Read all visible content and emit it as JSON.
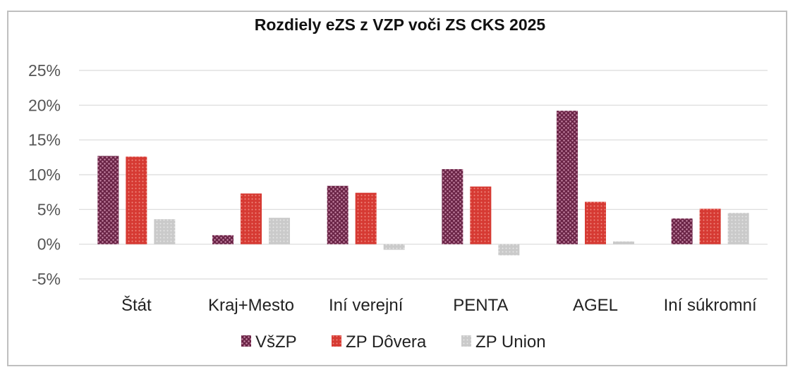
{
  "chart_data": {
    "type": "bar",
    "title": "Rozdiely eZS z VZP voči ZS CKS 2025",
    "xlabel": "",
    "ylabel": "",
    "ylim": [
      -5,
      25
    ],
    "y_ticks": [
      25,
      20,
      15,
      10,
      5,
      0,
      -5
    ],
    "y_tick_labels": [
      "25%",
      "20%",
      "15%",
      "10%",
      "5%",
      "0%",
      "-5%"
    ],
    "grid": true,
    "legend_position": "bottom",
    "categories": [
      "Štát",
      "Kraj+Mesto",
      "Iní verejní",
      "PENTA",
      "AGEL",
      "Iní súkromní"
    ],
    "series": [
      {
        "name": "VšZP",
        "color": "#7b3355",
        "values": [
          12.7,
          1.3,
          8.4,
          10.8,
          19.2,
          3.7
        ]
      },
      {
        "name": "ZP Dôvera",
        "color": "#d9453d",
        "values": [
          12.6,
          7.3,
          7.4,
          8.3,
          6.1,
          5.1
        ]
      },
      {
        "name": "ZP Union",
        "color": "#cfcfcf",
        "values": [
          3.6,
          3.8,
          -0.8,
          -1.6,
          0.4,
          4.5
        ]
      }
    ]
  }
}
